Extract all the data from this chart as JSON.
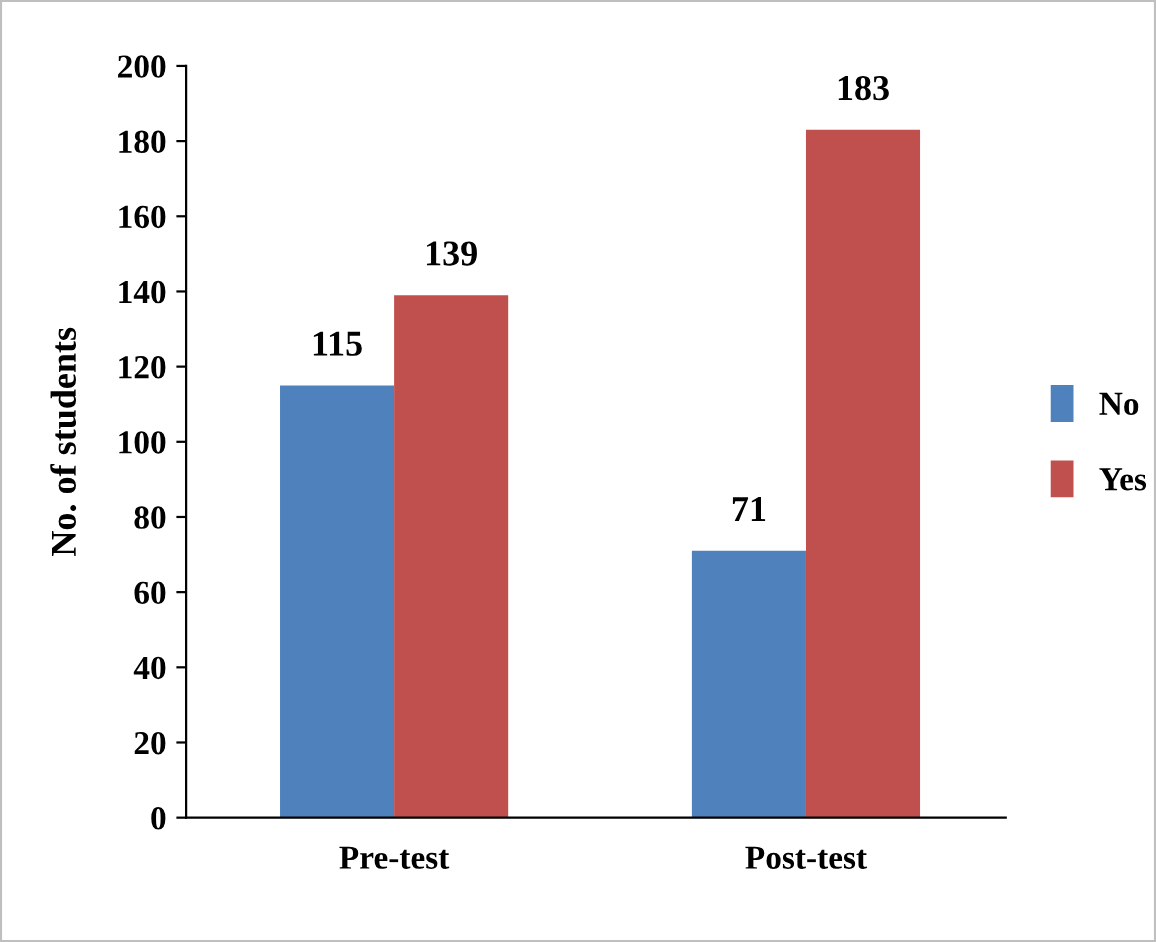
{
  "chart_data": {
    "type": "bar",
    "ylabel": "No. of students",
    "categories": [
      "Pre-test",
      "Post-test"
    ],
    "series": [
      {
        "name": "No",
        "color": "#4f81bd",
        "values": [
          115,
          71
        ]
      },
      {
        "name": "Yes",
        "color": "#c0504d",
        "values": [
          139,
          183
        ]
      }
    ],
    "ylim": [
      0,
      200
    ],
    "yticks": [
      0,
      20,
      40,
      60,
      80,
      100,
      120,
      140,
      160,
      180,
      200
    ],
    "grid": false,
    "legend": "right",
    "data_labels": true
  }
}
